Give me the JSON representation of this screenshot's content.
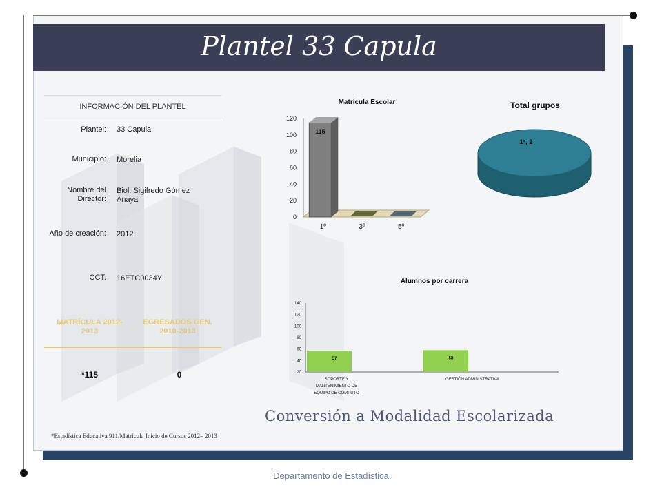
{
  "title": "Plantel 33 Capula",
  "info": {
    "heading": "INFORMACIÓN DEL PLANTEL",
    "rows": [
      {
        "label": "Plantel:",
        "value": "33 Capula"
      },
      {
        "label": "Municipio:",
        "value": "Morelia"
      },
      {
        "label": "Nombre del Director:",
        "value": "Biol. Sigifredo Gómez Anaya"
      },
      {
        "label": "Año de creación:",
        "value": "2012"
      },
      {
        "label": "CCT:",
        "value": "16ETC0034Y"
      }
    ],
    "matricula_label": "MATRÍCULA 2012-2013",
    "egresados_label": "EGRESADOS GEN. 2010-2013",
    "matricula_value": "*115",
    "egresados_value": "0"
  },
  "subtitle": "Conversión a Modalidad Escolarizada",
  "footnote": "*Estadística Educativa 911/Matrícula Inicio de Cursos 2012– 2013",
  "footer": "Departamento de Estadística",
  "colors": {
    "title_bar": "#3b3f56",
    "frame_shadow": "#2a4466",
    "gold": "#e3c77a",
    "bar_gray": "#7f7f7f",
    "bar_green": "#92d050",
    "pie_teal": "#2e7f94"
  },
  "chart_data": [
    {
      "type": "bar",
      "title": "Matrícula Escolar",
      "categories": [
        "1º",
        "3º",
        "5º"
      ],
      "values": [
        115,
        0,
        0
      ],
      "data_labels": [
        "115",
        "",
        ""
      ],
      "ylim": [
        0,
        120
      ],
      "yticks": [
        0,
        20,
        40,
        60,
        80,
        100,
        120
      ],
      "style": "3d"
    },
    {
      "type": "pie",
      "title": "Total grupos",
      "labels": [
        "1º"
      ],
      "values": [
        2
      ],
      "data_labels": [
        "1º; 2"
      ],
      "style": "3d"
    },
    {
      "type": "bar",
      "title": "Alumnos por carrera",
      "categories": [
        "SOPORTE Y MANTENIMIENTO DE EQUIPO DE CÓMPUTO",
        "GESTIÓN ADMINISTRATIVA"
      ],
      "values": [
        57,
        58
      ],
      "data_labels": [
        "57",
        "58"
      ],
      "ylim": [
        20,
        140
      ],
      "yticks": [
        20,
        40,
        60,
        80,
        100,
        120,
        140
      ]
    }
  ]
}
